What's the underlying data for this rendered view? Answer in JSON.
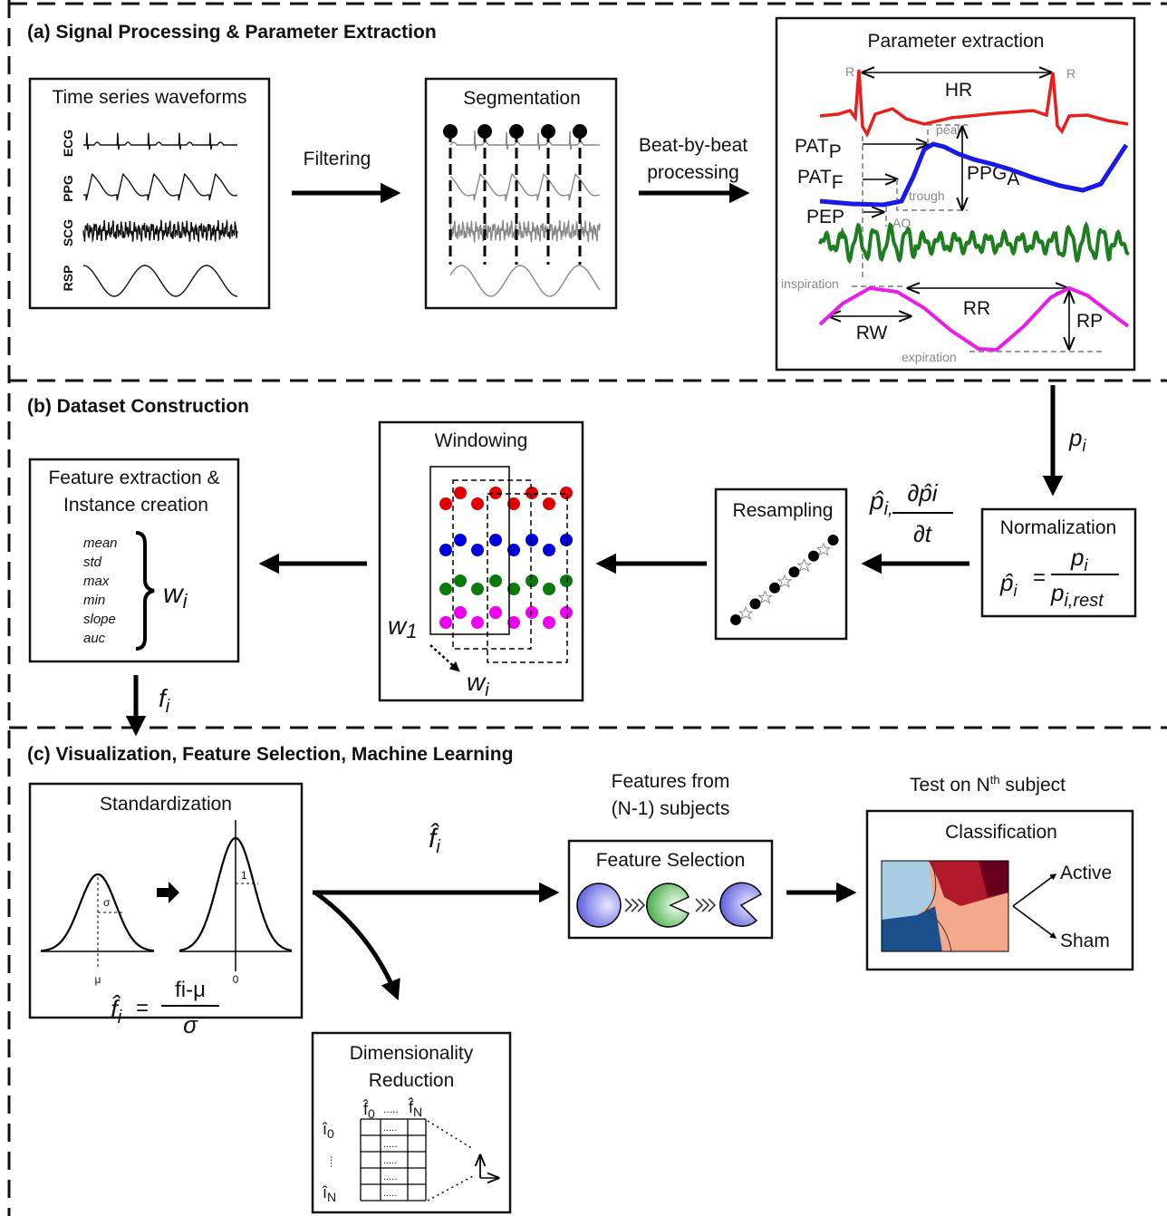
{
  "panel_a": {
    "title": "(a) Signal Processing & Parameter Extraction",
    "waveforms": {
      "title": "Time series waveforms",
      "signals": [
        "ECG",
        "PPG",
        "SCG",
        "RSP"
      ]
    },
    "filtering": "Filtering",
    "segmentation": "Segmentation",
    "beat_by_beat": [
      "Beat-by-beat",
      "processing"
    ],
    "parameter_extraction": {
      "title": "Parameter extraction",
      "r_peaks": [
        "R",
        "R"
      ],
      "hr": "HR",
      "pat_p": {
        "base": "PAT",
        "sub": "P"
      },
      "peak": "peak",
      "pat_f": {
        "base": "PAT",
        "sub": "F"
      },
      "ppg_a": {
        "base": "PPG",
        "sub": "A"
      },
      "trough": "trough",
      "pep": "PEP",
      "ao": "AO",
      "inspiration": "inspiration",
      "rr": "RR",
      "rw": "RW",
      "rp": "RP",
      "expiration": "expiration"
    }
  },
  "panel_b": {
    "title": "(b) Dataset Construction",
    "p_i": {
      "base": "p",
      "sub": "i"
    },
    "normalization": {
      "title": "Normalization",
      "lhs": {
        "base": "p̂",
        "sub": "i"
      },
      "equals": "=",
      "numerator": {
        "base": "p",
        "sub": "i"
      },
      "denominator": {
        "base": "p",
        "sub": "i,rest"
      }
    },
    "normalized_label": {
      "p_hat": {
        "base": "p̂",
        "sub": "i,"
      },
      "numerator": "∂p̂i",
      "denominator": "∂t"
    },
    "resampling": "Resampling",
    "windowing": {
      "title": "Windowing",
      "w1": {
        "base": "w",
        "sub": "1"
      },
      "wi": {
        "base": "w",
        "sub": "i"
      }
    },
    "feature_extraction": {
      "title": [
        "Feature extraction &",
        "Instance creation"
      ],
      "features": [
        "mean",
        "std",
        "max",
        "min",
        "slope",
        "auc"
      ],
      "window": {
        "base": "w",
        "sub": "i"
      }
    },
    "f_i": {
      "base": "f",
      "sub": "i"
    }
  },
  "panel_c": {
    "title": "(c) Visualization, Feature Selection, Machine Learning",
    "standardization": {
      "title": "Standardization",
      "sigma": "σ",
      "mu": "μ",
      "one": "1",
      "zero": "0",
      "lhs": {
        "base": "f̂",
        "sub": "i"
      },
      "equals": "=",
      "numerator": "fi-μ",
      "denominator": "σ"
    },
    "f_hat": {
      "base": "f̂",
      "sub": "i"
    },
    "features_from": [
      "Features from",
      "(N-1) subjects"
    ],
    "feature_selection": "Feature Selection",
    "test_on": {
      "before": "Test on N",
      "sup": "th",
      "after": " subject"
    },
    "classification": {
      "title": "Classification",
      "classes": [
        "Active",
        "Sham"
      ]
    },
    "dimensionality_reduction": {
      "title": [
        "Dimensionality",
        "Reduction"
      ],
      "columns": [
        {
          "base": "f̂",
          "sub": "0"
        },
        ".....",
        {
          "base": "f̂",
          "sub": "N"
        }
      ],
      "rows": [
        {
          "base": "î",
          "sub": "0"
        },
        "....",
        {
          "base": "î",
          "sub": "N"
        }
      ],
      "cell_dots": "....."
    }
  }
}
